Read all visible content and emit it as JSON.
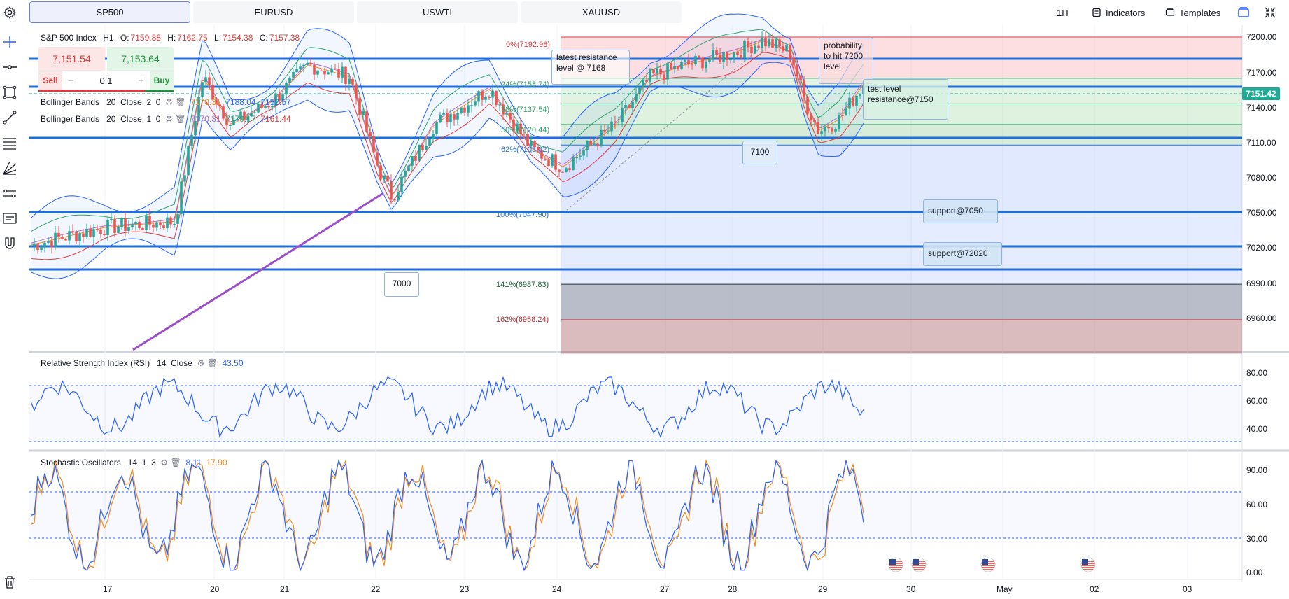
{
  "tabs": [
    "SP500",
    "EURUSD",
    "USWTI",
    "XAUUSD"
  ],
  "active_tab": "SP500",
  "toolbar": {
    "interval": "1H",
    "indicators_label": "Indicators",
    "templates_label": "Templates"
  },
  "symbol": {
    "name": "S&P 500 Index",
    "interval": "H1",
    "open_label": "O:",
    "open": "7159.88",
    "high_label": "H:",
    "high": "7162.75",
    "low_label": "L:",
    "low": "7154.38",
    "close_label": "C:",
    "close": "7157.38"
  },
  "trade": {
    "sell_price": "7,151.54",
    "buy_price": "7,153.64",
    "sell_label": "Sell",
    "buy_label": "Buy",
    "quantity": "0.1",
    "minus": "−",
    "plus": "+"
  },
  "indicators": {
    "bb1": {
      "name": "Bollinger Bands",
      "params": "20  Close  2  0",
      "v1": "7170.31",
      "v2": "7188.04",
      "v3": "7152.57"
    },
    "bb2": {
      "name": "Bollinger Bands",
      "params": "20  Close  1  0",
      "v1": "7170.31",
      "v2": "7179.17",
      "v3": "7161.44"
    },
    "rsi": {
      "name": "Relative Strength Index (RSI)",
      "params": "14  Close",
      "value": "43.50"
    },
    "stoch": {
      "name": "Stochastic Oscillators",
      "params": "14  1  3",
      "k": "8.11",
      "d": "17.90"
    }
  },
  "price_axis": [
    "7200.00",
    "7170.00",
    "7140.00",
    "7110.00",
    "7080.00",
    "7050.00",
    "7020.00",
    "6990.00",
    "6960.00"
  ],
  "current_price": "7151.42",
  "rsi_axis": [
    "80.00",
    "60.00",
    "40.00"
  ],
  "stoch_axis": [
    "90.00",
    "60.00",
    "30.00",
    "0.00"
  ],
  "time_axis": [
    "17",
    "20",
    "21",
    "22",
    "23",
    "24",
    "27",
    "28",
    "29",
    "30",
    "May",
    "02",
    "03"
  ],
  "fib_levels": [
    {
      "label": "0%(7192.98)",
      "color": "#e03a3a"
    },
    {
      "label": "24%(7158.74)",
      "color": "#2fa36a"
    },
    {
      "label": "38%(7137.54)",
      "color": "#2fa36a"
    },
    {
      "label": "50%(7120.44)",
      "color": "#2fa36a"
    },
    {
      "label": "62%(7103.32)",
      "color": "#2a74d6"
    },
    {
      "label": "100%(7047.90)",
      "color": "#2a74d6"
    },
    {
      "label": "141%(6987.83)",
      "color": "#1e5a3a"
    },
    {
      "label": "162%(6958.24)",
      "color": "#b0303a"
    }
  ],
  "notes": {
    "resistance": "latest resistance\nlevel @ 7168",
    "probability": "probability\nto hit 7200\nlevel",
    "test_level": "test level\nresistance@7150",
    "n7100": "7100",
    "n7000": "7000",
    "support7050": "support@7050",
    "support72020": "support@72020"
  },
  "colors": {
    "accent": "#2962ff",
    "up": "#26a69a",
    "down": "#ef5350",
    "hline": "#1e6fd9",
    "trend": "#9b4dca"
  }
}
